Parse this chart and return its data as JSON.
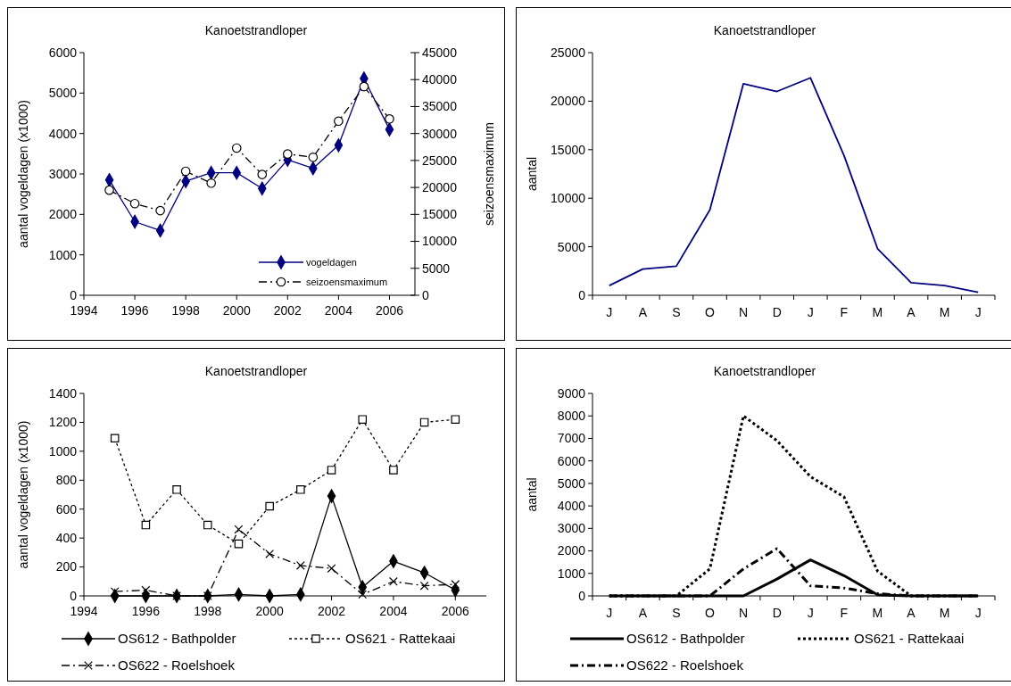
{
  "chart_data": [
    {
      "type": "line",
      "title": "Kanoetstrandloper",
      "ylabel": "aantal vogeldagen (x1000)",
      "y2label": "seizoensmaximum",
      "x": [
        1995,
        1996,
        1997,
        1998,
        1999,
        2000,
        2001,
        2002,
        2003,
        2004,
        2005,
        2006
      ],
      "xlim": [
        1994,
        2007
      ],
      "xticks": [
        1994,
        1996,
        1998,
        2000,
        2002,
        2004,
        2006
      ],
      "ylim": [
        0,
        6000
      ],
      "yticks": [
        0,
        1000,
        2000,
        3000,
        4000,
        5000,
        6000
      ],
      "y2lim": [
        0,
        45000
      ],
      "y2ticks": [
        0,
        5000,
        10000,
        15000,
        20000,
        25000,
        30000,
        35000,
        40000,
        45000
      ],
      "grid": false,
      "legend": "bottom right",
      "series": [
        {
          "name": "vogeldagen",
          "color": "#000080",
          "marker": "diamond",
          "line_style": "solid",
          "values": [
            2850,
            1820,
            1600,
            2820,
            3030,
            3030,
            2640,
            3350,
            3140,
            3710,
            5360,
            4100
          ]
        },
        {
          "name": "seizoensmaximum",
          "color": "#000000",
          "marker": "circle",
          "line_style": "dashed",
          "axis": "y2",
          "values": [
            19500,
            17000,
            15700,
            23000,
            20800,
            27300,
            22400,
            26200,
            25600,
            32300,
            38700,
            32700
          ]
        }
      ]
    },
    {
      "type": "line",
      "title": "Kanoetstrandloper",
      "ylabel": "aantal",
      "categories": [
        "J",
        "A",
        "S",
        "O",
        "N",
        "D",
        "J",
        "F",
        "M",
        "A",
        "M",
        "J"
      ],
      "ylim": [
        0,
        25000
      ],
      "yticks": [
        0,
        5000,
        10000,
        15000,
        20000,
        25000
      ],
      "grid": false,
      "legend": false,
      "series": [
        {
          "color": "#000080",
          "line_style": "solid",
          "values": [
            1000,
            2700,
            3000,
            8800,
            21800,
            21000,
            22400,
            14400,
            4800,
            1300,
            1000,
            300
          ]
        }
      ]
    },
    {
      "type": "line",
      "title": "Kanoetstrandloper",
      "ylabel": "aantal vogeldagen (x1000)",
      "x": [
        1995,
        1996,
        1997,
        1998,
        1999,
        2000,
        2001,
        2002,
        2003,
        2004,
        2005,
        2006
      ],
      "xlim": [
        1994,
        2007
      ],
      "xticks": [
        1994,
        1996,
        1998,
        2000,
        2002,
        2004,
        2006
      ],
      "ylim": [
        0,
        1400
      ],
      "yticks": [
        0,
        200,
        400,
        600,
        800,
        1000,
        1200,
        1400
      ],
      "grid": false,
      "legend": "bottom",
      "series": [
        {
          "name": "OS612 - Bathpolder",
          "color": "#000000",
          "marker": "diamond",
          "line_style": "solid",
          "values": [
            0,
            0,
            0,
            0,
            10,
            0,
            10,
            690,
            60,
            240,
            160,
            40
          ]
        },
        {
          "name": "OS621 - Rattekaai",
          "color": "#000000",
          "marker": "square",
          "line_style": "dotted",
          "values": [
            1090,
            490,
            735,
            490,
            360,
            620,
            735,
            870,
            1220,
            870,
            1200,
            1220
          ]
        },
        {
          "name": "OS622 - Roelshoek",
          "color": "#000000",
          "marker": "cross",
          "line_style": "dashed",
          "values": [
            30,
            40,
            0,
            0,
            460,
            290,
            210,
            190,
            10,
            100,
            70,
            80
          ]
        }
      ]
    },
    {
      "type": "line",
      "title": "Kanoetstrandloper",
      "ylabel": "aantal",
      "categories": [
        "J",
        "A",
        "S",
        "O",
        "N",
        "D",
        "J",
        "F",
        "M",
        "A",
        "M",
        "J"
      ],
      "ylim": [
        0,
        9000
      ],
      "yticks": [
        0,
        1000,
        2000,
        3000,
        4000,
        5000,
        6000,
        7000,
        8000,
        9000
      ],
      "grid": false,
      "legend": "bottom",
      "series": [
        {
          "name": "OS612 - Bathpolder",
          "color": "#000000",
          "line_style": "solid",
          "values": [
            0,
            0,
            0,
            0,
            0,
            750,
            1600,
            900,
            50,
            0,
            0,
            0
          ]
        },
        {
          "name": "OS621 - Rattekaai",
          "color": "#000000",
          "line_style": "dotted",
          "values": [
            0,
            0,
            0,
            1200,
            8000,
            6900,
            5300,
            4400,
            1100,
            0,
            0,
            0
          ]
        },
        {
          "name": "OS622 - Roelshoek",
          "color": "#000000",
          "line_style": "dashed",
          "values": [
            0,
            0,
            0,
            0,
            1200,
            2100,
            450,
            350,
            100,
            0,
            0,
            0
          ]
        }
      ]
    }
  ]
}
